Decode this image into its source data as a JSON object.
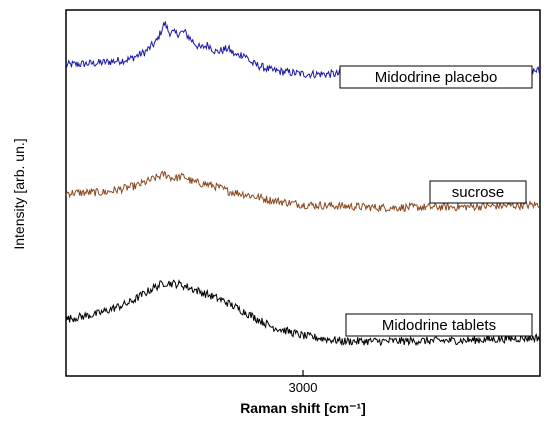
{
  "chart_data": {
    "type": "line",
    "xlabel": "Raman shift [cm⁻¹]",
    "ylabel": "Intensity [arb. un.]",
    "xlim": [
      2700,
      3300
    ],
    "x_ticks": [
      3000
    ],
    "y_ticks": [],
    "grid": false,
    "series": [
      {
        "name": "Midodrine placebo",
        "color": "#1a1aa8",
        "points": [
          [
            2700,
            8.5
          ],
          [
            2740,
            8.55
          ],
          [
            2780,
            8.65
          ],
          [
            2800,
            8.85
          ],
          [
            2815,
            9.15
          ],
          [
            2825,
            9.65
          ],
          [
            2830,
            9.4
          ],
          [
            2840,
            9.35
          ],
          [
            2850,
            9.4
          ],
          [
            2860,
            9.15
          ],
          [
            2870,
            8.95
          ],
          [
            2880,
            9.05
          ],
          [
            2890,
            8.85
          ],
          [
            2905,
            8.95
          ],
          [
            2915,
            8.75
          ],
          [
            2925,
            8.8
          ],
          [
            2935,
            8.55
          ],
          [
            2960,
            8.35
          ],
          [
            3000,
            8.25
          ],
          [
            3100,
            8.25
          ],
          [
            3200,
            8.25
          ],
          [
            3300,
            8.35
          ]
        ]
      },
      {
        "name": "sucrose",
        "color": "#8a4a22",
        "points": [
          [
            2700,
            5.0
          ],
          [
            2750,
            5.02
          ],
          [
            2790,
            5.2
          ],
          [
            2810,
            5.38
          ],
          [
            2825,
            5.52
          ],
          [
            2835,
            5.4
          ],
          [
            2850,
            5.45
          ],
          [
            2860,
            5.3
          ],
          [
            2875,
            5.25
          ],
          [
            2890,
            5.18
          ],
          [
            2905,
            5.05
          ],
          [
            2930,
            4.95
          ],
          [
            2960,
            4.8
          ],
          [
            3000,
            4.68
          ],
          [
            3100,
            4.6
          ],
          [
            3200,
            4.62
          ],
          [
            3300,
            4.68
          ]
        ]
      },
      {
        "name": "Midodrine tablets",
        "color": "#000000",
        "points": [
          [
            2700,
            1.55
          ],
          [
            2740,
            1.7
          ],
          [
            2780,
            2.0
          ],
          [
            2810,
            2.4
          ],
          [
            2825,
            2.55
          ],
          [
            2845,
            2.5
          ],
          [
            2870,
            2.3
          ],
          [
            2900,
            2.05
          ],
          [
            2930,
            1.7
          ],
          [
            2960,
            1.35
          ],
          [
            3000,
            1.1
          ],
          [
            3050,
            0.95
          ],
          [
            3100,
            0.95
          ],
          [
            3200,
            0.97
          ],
          [
            3300,
            1.05
          ]
        ]
      }
    ],
    "annotations": [
      {
        "text": "Midodrine placebo",
        "series": 0
      },
      {
        "text": "sucrose",
        "series": 1
      },
      {
        "text": "Midodrine tablets",
        "series": 2
      }
    ]
  }
}
